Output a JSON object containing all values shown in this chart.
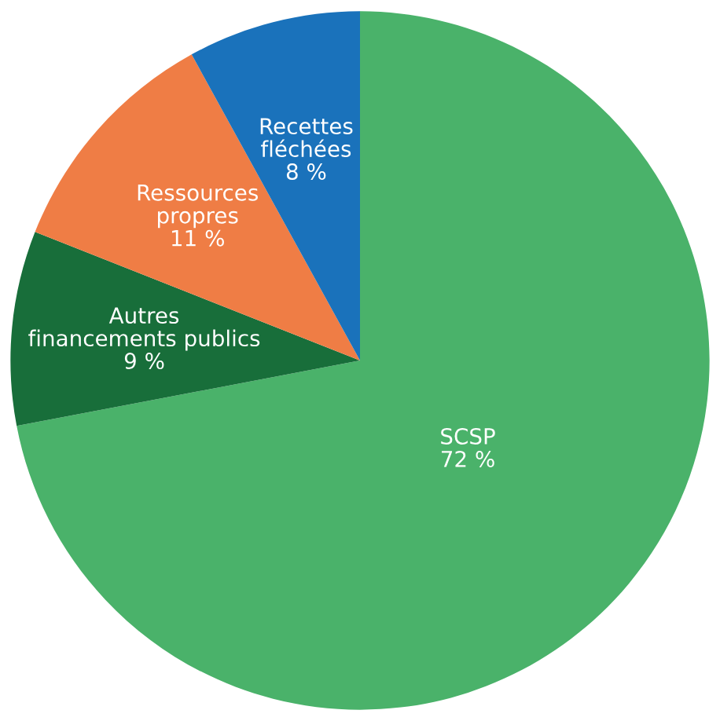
{
  "chart_data": {
    "type": "pie",
    "categories": [
      "SCSP",
      "Autres\nfinancements publics",
      "Ressources\npropres",
      "Recettes\nfléchées"
    ],
    "values": [
      72,
      9,
      11,
      8
    ],
    "value_labels": [
      "72 %",
      "9 %",
      "11 %",
      "8 %"
    ],
    "colors": [
      "#4ab26a",
      "#186e3a",
      "#ef7d45",
      "#1a72bb"
    ]
  }
}
